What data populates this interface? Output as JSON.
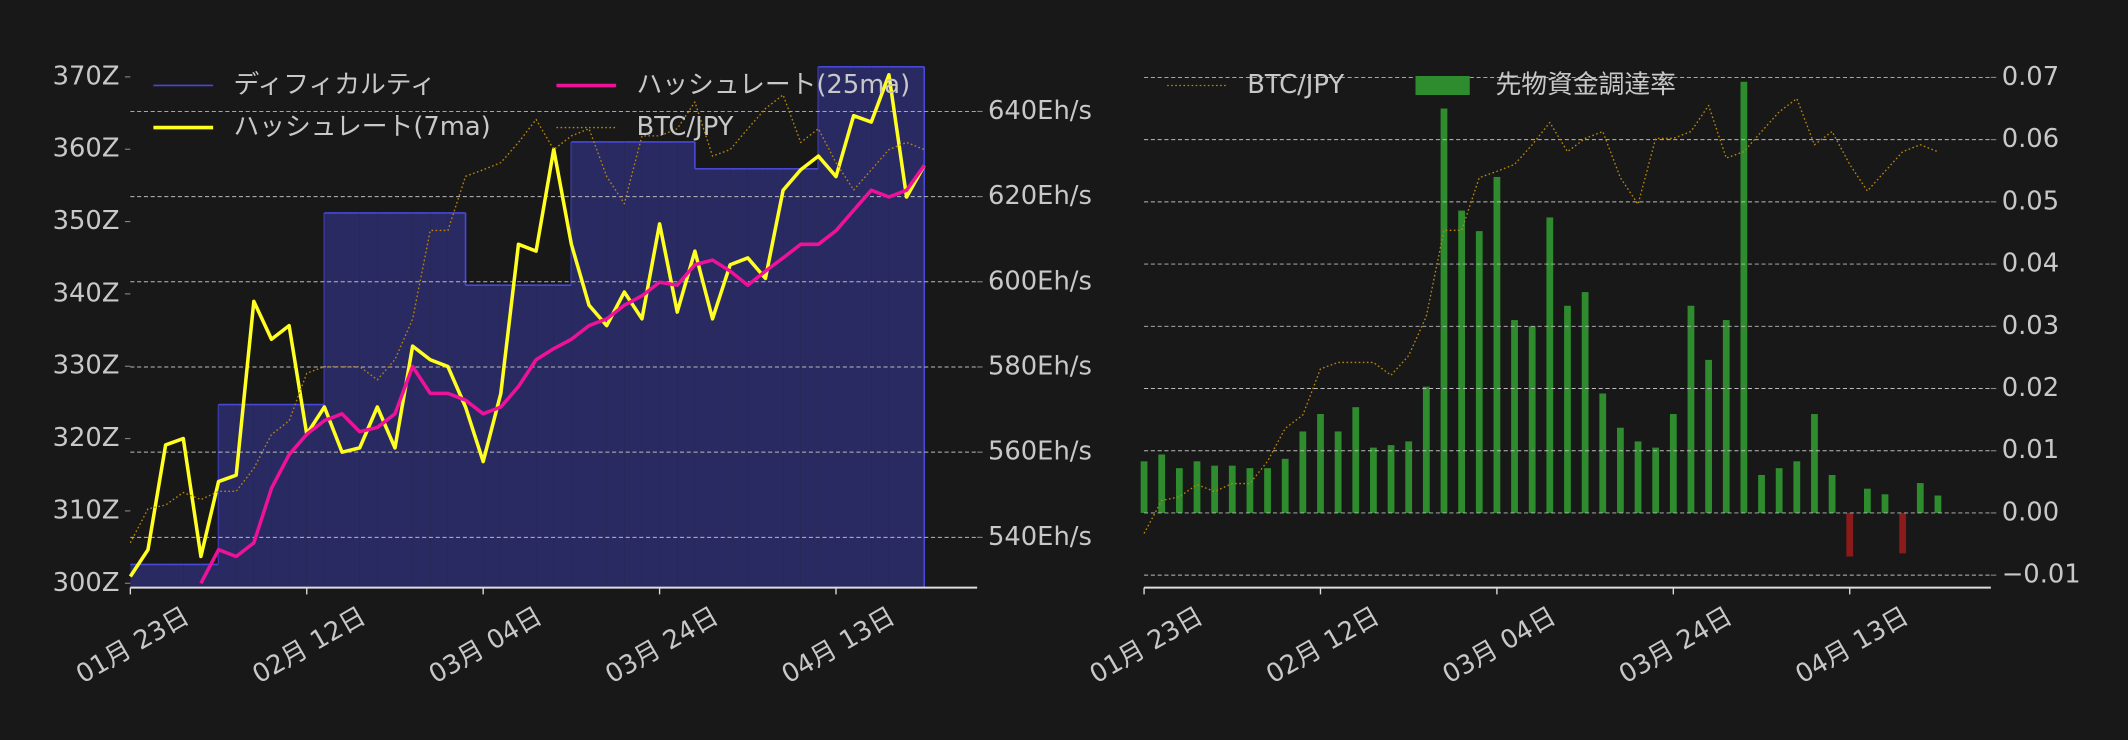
{
  "chart_data": [
    {
      "type": "line",
      "x": [
        "01-23",
        "01-25",
        "01-27",
        "01-29",
        "01-31",
        "02-02",
        "02-04",
        "02-06",
        "02-08",
        "02-10",
        "02-12",
        "02-14",
        "02-16",
        "02-18",
        "02-20",
        "02-22",
        "02-24",
        "02-26",
        "02-28",
        "03-02",
        "03-04",
        "03-06",
        "03-08",
        "03-10",
        "03-12",
        "03-14",
        "03-16",
        "03-18",
        "03-20",
        "03-22",
        "03-24",
        "03-26",
        "03-28",
        "03-30",
        "04-01",
        "04-03",
        "04-05",
        "04-07",
        "04-09",
        "04-11",
        "04-13",
        "04-15",
        "04-17",
        "04-19",
        "04-21",
        "04-23"
      ],
      "xlim": [
        "01-23",
        "04-29"
      ],
      "xticks": [
        {
          "value": "01-23",
          "label": "01月 23日"
        },
        {
          "value": "02-12",
          "label": "02月 12日"
        },
        {
          "value": "03-04",
          "label": "03月 04日"
        },
        {
          "value": "03-24",
          "label": "03月 24日"
        },
        {
          "value": "04-13",
          "label": "04月 13日"
        }
      ],
      "ylim": [
        299.4,
        375
      ],
      "yticks": [
        {
          "value": 300,
          "label": "300Z"
        },
        {
          "value": 310,
          "label": "310Z"
        },
        {
          "value": 320,
          "label": "320Z"
        },
        {
          "value": 330,
          "label": "330Z"
        },
        {
          "value": 340,
          "label": "340Z"
        },
        {
          "value": 350,
          "label": "350Z"
        },
        {
          "value": 360,
          "label": "360Z"
        },
        {
          "value": 370,
          "label": "370Z"
        }
      ],
      "y2lim": [
        528.2,
        656.6
      ],
      "y2ticks": [
        {
          "value": 540,
          "label": "540Eh/s"
        },
        {
          "value": 560,
          "label": "560Eh/s"
        },
        {
          "value": 580,
          "label": "580Eh/s"
        },
        {
          "value": 600,
          "label": "600Eh/s"
        },
        {
          "value": 620,
          "label": "620Eh/s"
        },
        {
          "value": 640,
          "label": "640Eh/s"
        }
      ],
      "y3lim": [
        0,
        100
      ],
      "grid": "y2",
      "legend": "upper left",
      "series": [
        {
          "name": "ディフィカルティ",
          "type": "step",
          "axis": "y",
          "color": "#4848d8",
          "fill": "#2a2a62",
          "values": [
            302.6,
            302.6,
            302.6,
            302.6,
            302.6,
            324.7,
            324.7,
            324.7,
            324.7,
            324.7,
            324.7,
            351.2,
            351.2,
            351.2,
            351.2,
            351.2,
            351.2,
            351.2,
            351.2,
            341.2,
            341.2,
            341.2,
            341.2,
            341.2,
            341.2,
            361,
            361,
            361,
            361,
            361,
            361,
            361,
            357.3,
            357.3,
            357.3,
            357.3,
            357.3,
            357.3,
            357.3,
            371.4,
            371.4,
            371.4,
            371.4,
            371.4,
            371.4,
            371.4
          ]
        },
        {
          "name": "ハッシュレート(7ma)",
          "type": "line",
          "axis": "y2",
          "color": "#ffff22",
          "values": [
            530.8,
            537.1,
            561.7,
            563.2,
            535.5,
            553.1,
            554.6,
            595.4,
            586.5,
            589.7,
            564.2,
            570.6,
            560,
            561,
            570.6,
            561,
            584.9,
            581.7,
            580.1,
            570.6,
            557.8,
            573.8,
            608.8,
            607.2,
            631.1,
            608.8,
            594.5,
            589.7,
            597.6,
            591.3,
            613.6,
            592.9,
            607.2,
            591.3,
            604,
            605.6,
            600.8,
            621.5,
            626.3,
            629.5,
            624.7,
            639,
            637.5,
            648.6,
            619.9,
            627.3
          ]
        },
        {
          "name": "ハッシュレート(25ma)",
          "type": "line",
          "axis": "y2",
          "color": "#ee1199",
          "values": [
            null,
            null,
            null,
            null,
            529.2,
            537.1,
            535.5,
            538.7,
            551.5,
            559.4,
            564.2,
            567.4,
            569,
            564.8,
            565.8,
            569,
            580.1,
            573.8,
            573.8,
            572.2,
            569,
            570.6,
            575.4,
            581.7,
            584.3,
            586.5,
            589.7,
            591.3,
            594.5,
            596.7,
            599.9,
            599.2,
            604,
            605.1,
            602.5,
            599.2,
            602.5,
            605.6,
            608.8,
            608.8,
            612,
            616.8,
            621.5,
            619.9,
            621.5,
            627.3
          ]
        },
        {
          "name": "BTC/JPY",
          "type": "line",
          "axis": "y3",
          "linestyle": "dotted",
          "color": "#b8860b",
          "values": [
            8.2,
            14.4,
            15.1,
            17.4,
            16.1,
            17.6,
            17.6,
            21.8,
            28,
            30.5,
            39.2,
            40.4,
            40.4,
            40.4,
            38,
            41.7,
            49.1,
            65.3,
            65.3,
            75.2,
            76.4,
            77.7,
            81.4,
            85.6,
            80.1,
            82.6,
            83.9,
            75.2,
            70.2,
            82.6,
            82.6,
            83.9,
            88.8,
            78.9,
            80.1,
            83.9,
            87.6,
            90.1,
            81.4,
            83.9,
            77.7,
            72.7,
            76.4,
            80.1,
            81.4,
            80.1
          ]
        }
      ]
    },
    {
      "type": "bar",
      "x": [
        "01-23",
        "01-25",
        "01-27",
        "01-29",
        "01-31",
        "02-02",
        "02-04",
        "02-06",
        "02-08",
        "02-10",
        "02-12",
        "02-14",
        "02-16",
        "02-18",
        "02-20",
        "02-22",
        "02-24",
        "02-26",
        "02-28",
        "03-02",
        "03-04",
        "03-06",
        "03-08",
        "03-10",
        "03-12",
        "03-14",
        "03-16",
        "03-18",
        "03-20",
        "03-22",
        "03-24",
        "03-26",
        "03-28",
        "03-30",
        "04-01",
        "04-03",
        "04-05",
        "04-07",
        "04-09",
        "04-11",
        "04-13",
        "04-15",
        "04-17",
        "04-19",
        "04-21",
        "04-23"
      ],
      "xlim": [
        "01-23",
        "04-29"
      ],
      "xticks": [
        {
          "value": "01-23",
          "label": "01月 23日"
        },
        {
          "value": "02-12",
          "label": "02月 12日"
        },
        {
          "value": "03-04",
          "label": "03月 04日"
        },
        {
          "value": "03-24",
          "label": "03月 24日"
        },
        {
          "value": "04-13",
          "label": "04月 13日"
        }
      ],
      "ylim": [
        -0.012,
        0.0759
      ],
      "yticks": [
        {
          "value": -0.01,
          "label": "−0.01"
        },
        {
          "value": 0,
          "label": "0.00"
        },
        0.01,
        0.02,
        0.03,
        0.04,
        0.05,
        0.06,
        0.07
      ],
      "y_side": "right",
      "y3lim": [
        -2,
        101
      ],
      "grid": "y",
      "legend": "upper left",
      "series": [
        {
          "name": "BTC/JPY",
          "type": "line",
          "axis": "y3",
          "linestyle": "dotted",
          "color": "#b8860b",
          "values": [
            8.2,
            14.4,
            15.1,
            17.4,
            16.1,
            17.6,
            17.6,
            21.8,
            28,
            30.5,
            39.2,
            40.4,
            40.4,
            40.4,
            38,
            41.7,
            49.1,
            65.3,
            65.3,
            75.2,
            76.4,
            77.7,
            81.4,
            85.6,
            80.1,
            82.6,
            83.9,
            75.2,
            70.2,
            82.6,
            82.6,
            83.9,
            88.8,
            78.9,
            80.1,
            83.9,
            87.6,
            90.1,
            81.4,
            83.9,
            77.7,
            72.7,
            76.4,
            80.1,
            81.4,
            80.1
          ]
        },
        {
          "name": "先物資金調達率",
          "type": "bar",
          "axis": "y",
          "color": "#2e8b2e",
          "negative_color": "#8b1a1a",
          "values": [
            0.0083,
            0.0094,
            0.0072,
            0.0083,
            0.0076,
            0.0076,
            0.0072,
            0.0072,
            0.0087,
            0.0131,
            0.0159,
            0.0131,
            0.017,
            0.0105,
            0.0109,
            0.0115,
            0.0203,
            0.065,
            0.0486,
            0.0453,
            0.054,
            0.031,
            0.03,
            0.0475,
            0.0333,
            0.0355,
            0.0192,
            0.0137,
            0.0115,
            0.0105,
            0.0159,
            0.0333,
            0.0246,
            0.031,
            0.0693,
            0.0061,
            0.0072,
            0.0083,
            0.0159,
            0.0061,
            -0.007,
            0.0039,
            0.003,
            -0.0065,
            0.0048,
            0.0028
          ]
        }
      ]
    }
  ]
}
